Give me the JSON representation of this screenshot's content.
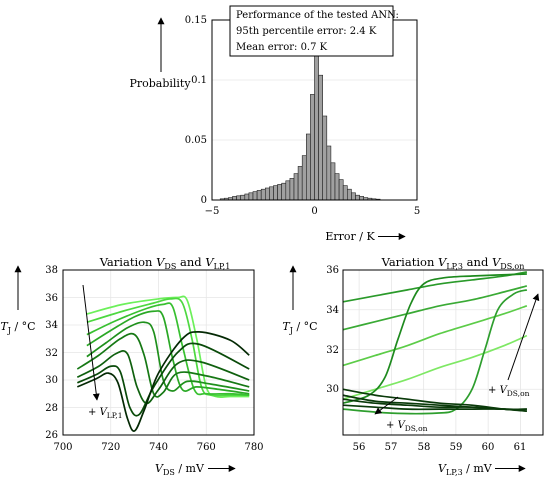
{
  "histogram": {
    "type": "bar",
    "ylabel": "Probability",
    "xlabel": "Error / K",
    "xlim": [
      -5,
      5
    ],
    "ylim": [
      0,
      0.15
    ],
    "xticks": [
      "−5",
      "0",
      "5"
    ],
    "yticks": [
      "0",
      "0.05",
      "0.1",
      "0.15"
    ],
    "grid": true,
    "bar_color": "#a0a0a0",
    "info_box": {
      "line1": "Performance of the tested ANN:",
      "line2": "95th percentile error: 2.4 K",
      "line3": "Mean error: 0.7 K"
    }
  },
  "chart_data": [
    {
      "type": "bar",
      "bin_width": 0.2,
      "bins": [
        {
          "x": -4.5,
          "y": 0.001
        },
        {
          "x": -4.3,
          "y": 0.0015
        },
        {
          "x": -4.1,
          "y": 0.002
        },
        {
          "x": -3.9,
          "y": 0.003
        },
        {
          "x": -3.7,
          "y": 0.0035
        },
        {
          "x": -3.5,
          "y": 0.004
        },
        {
          "x": -3.3,
          "y": 0.005
        },
        {
          "x": -3.1,
          "y": 0.006
        },
        {
          "x": -2.9,
          "y": 0.007
        },
        {
          "x": -2.7,
          "y": 0.008
        },
        {
          "x": -2.5,
          "y": 0.009
        },
        {
          "x": -2.3,
          "y": 0.01
        },
        {
          "x": -2.1,
          "y": 0.011
        },
        {
          "x": -1.9,
          "y": 0.012
        },
        {
          "x": -1.7,
          "y": 0.013
        },
        {
          "x": -1.5,
          "y": 0.014
        },
        {
          "x": -1.3,
          "y": 0.016
        },
        {
          "x": -1.1,
          "y": 0.018
        },
        {
          "x": -0.9,
          "y": 0.022
        },
        {
          "x": -0.7,
          "y": 0.028
        },
        {
          "x": -0.5,
          "y": 0.037
        },
        {
          "x": -0.3,
          "y": 0.055
        },
        {
          "x": -0.1,
          "y": 0.088
        },
        {
          "x": 0.1,
          "y": 0.122
        },
        {
          "x": 0.3,
          "y": 0.104
        },
        {
          "x": 0.5,
          "y": 0.07
        },
        {
          "x": 0.7,
          "y": 0.045
        },
        {
          "x": 0.9,
          "y": 0.031
        },
        {
          "x": 1.1,
          "y": 0.022
        },
        {
          "x": 1.3,
          "y": 0.017
        },
        {
          "x": 1.5,
          "y": 0.012
        },
        {
          "x": 1.7,
          "y": 0.009
        },
        {
          "x": 1.9,
          "y": 0.006
        },
        {
          "x": 2.1,
          "y": 0.004
        },
        {
          "x": 2.3,
          "y": 0.003
        },
        {
          "x": 2.5,
          "y": 0.002
        },
        {
          "x": 2.7,
          "y": 0.0015
        },
        {
          "x": 2.9,
          "y": 0.001
        },
        {
          "x": 3.1,
          "y": 0.0007
        }
      ]
    },
    {
      "type": "line",
      "xlim": [
        700,
        780
      ],
      "ylim": [
        26,
        38
      ],
      "series": [
        {
          "color": "#6cf05a",
          "points": [
            [
              710,
              34.8
            ],
            [
              725,
              35.5
            ],
            [
              740,
              35.9
            ],
            [
              748,
              36.0
            ],
            [
              752,
              35.8
            ],
            [
              756,
              33
            ],
            [
              760,
              29.5
            ],
            [
              764,
              28.8
            ],
            [
              770,
              28.8
            ],
            [
              778,
              28.8
            ]
          ]
        },
        {
          "color": "#4dd840",
          "points": [
            [
              710,
              34.2
            ],
            [
              725,
              35.0
            ],
            [
              738,
              35.6
            ],
            [
              745,
              35.9
            ],
            [
              750,
              35.6
            ],
            [
              754,
              33
            ],
            [
              758,
              29.5
            ],
            [
              762,
              28.9
            ],
            [
              770,
              28.9
            ],
            [
              778,
              28.9
            ]
          ]
        },
        {
          "color": "#38c030",
          "points": [
            [
              710,
              33.3
            ],
            [
              722,
              34.3
            ],
            [
              735,
              35.2
            ],
            [
              742,
              35.5
            ],
            [
              746,
              35.3
            ],
            [
              750,
              32.5
            ],
            [
              755,
              29.3
            ],
            [
              760,
              29.0
            ],
            [
              770,
              29.0
            ],
            [
              778,
              28.9
            ]
          ]
        },
        {
          "color": "#2aa825",
          "points": [
            [
              710,
              32.5
            ],
            [
              720,
              33.6
            ],
            [
              730,
              34.6
            ],
            [
              738,
              35.0
            ],
            [
              742,
              34.6
            ],
            [
              746,
              31.5
            ],
            [
              750,
              29.3
            ],
            [
              756,
              29.5
            ],
            [
              766,
              29.3
            ],
            [
              778,
              29.0
            ]
          ]
        },
        {
          "color": "#1f901c",
          "points": [
            [
              710,
              31.7
            ],
            [
              718,
              32.7
            ],
            [
              727,
              33.8
            ],
            [
              734,
              34.2
            ],
            [
              738,
              33.5
            ],
            [
              742,
              30.0
            ],
            [
              746,
              29.2
            ],
            [
              752,
              29.9
            ],
            [
              762,
              29.7
            ],
            [
              778,
              29.2
            ]
          ]
        },
        {
          "color": "#167814",
          "points": [
            [
              706,
              30.8
            ],
            [
              715,
              31.8
            ],
            [
              724,
              33.0
            ],
            [
              730,
              33.3
            ],
            [
              734,
              31.8
            ],
            [
              738,
              29.0
            ],
            [
              742,
              29.1
            ],
            [
              748,
              30.5
            ],
            [
              760,
              30.3
            ],
            [
              778,
              29.5
            ]
          ]
        },
        {
          "color": "#0f600e",
          "points": [
            [
              706,
              30.2
            ],
            [
              715,
              31.0
            ],
            [
              722,
              31.9
            ],
            [
              727,
              31.9
            ],
            [
              731,
              29.5
            ],
            [
              735,
              28.3
            ],
            [
              740,
              29.3
            ],
            [
              748,
              31.2
            ],
            [
              758,
              31.3
            ],
            [
              778,
              30.0
            ]
          ]
        },
        {
          "color": "#094a09",
          "points": [
            [
              706,
              29.8
            ],
            [
              714,
              30.4
            ],
            [
              720,
              31.0
            ],
            [
              724,
              30.6
            ],
            [
              728,
              28.0
            ],
            [
              732,
              27.5
            ],
            [
              738,
              29.5
            ],
            [
              748,
              32.0
            ],
            [
              757,
              32.6
            ],
            [
              778,
              30.8
            ]
          ]
        },
        {
          "color": "#042904",
          "points": [
            [
              706,
              29.5
            ],
            [
              714,
              30.1
            ],
            [
              719,
              30.5
            ],
            [
              723,
              29.8
            ],
            [
              727,
              27.2
            ],
            [
              730,
              26.3
            ],
            [
              734,
              27.8
            ],
            [
              740,
              30.5
            ],
            [
              750,
              33.0
            ],
            [
              757,
              33.5
            ],
            [
              770,
              32.9
            ],
            [
              778,
              31.8
            ]
          ]
        }
      ]
    },
    {
      "type": "line",
      "xlim": [
        55.5,
        61.7
      ],
      "ylim": [
        27.7,
        36
      ],
      "series": [
        {
          "color": "#2a9a2a",
          "points": [
            [
              55.5,
              34.4
            ],
            [
              56.5,
              34.7
            ],
            [
              57.5,
              35.0
            ],
            [
              58.5,
              35.3
            ],
            [
              59.5,
              35.5
            ],
            [
              60.5,
              35.7
            ],
            [
              61.2,
              35.9
            ]
          ]
        },
        {
          "color": "#3aaa35",
          "points": [
            [
              55.5,
              33.0
            ],
            [
              56.5,
              33.4
            ],
            [
              57.5,
              33.8
            ],
            [
              58.5,
              34.2
            ],
            [
              59.5,
              34.5
            ],
            [
              60.5,
              34.9
            ],
            [
              61.2,
              35.2
            ]
          ]
        },
        {
          "color": "#5ccc48",
          "points": [
            [
              55.5,
              31.2
            ],
            [
              56.5,
              31.7
            ],
            [
              57.5,
              32.2
            ],
            [
              58.5,
              32.8
            ],
            [
              59.5,
              33.3
            ],
            [
              60.5,
              33.8
            ],
            [
              61.2,
              34.2
            ]
          ]
        },
        {
          "color": "#7ee864",
          "points": [
            [
              55.5,
              29.5
            ],
            [
              56.5,
              30.0
            ],
            [
              57.5,
              30.5
            ],
            [
              58.5,
              31.1
            ],
            [
              59.5,
              31.6
            ],
            [
              60.5,
              32.2
            ],
            [
              61.2,
              32.7
            ]
          ]
        },
        {
          "color": "#1e8a1e",
          "points": [
            [
              55.5,
              29.3
            ],
            [
              56.3,
              29.7
            ],
            [
              56.8,
              30.6
            ],
            [
              57.2,
              32.5
            ],
            [
              57.6,
              34.3
            ],
            [
              58.0,
              35.3
            ],
            [
              58.6,
              35.6
            ],
            [
              59.5,
              35.7
            ],
            [
              61.2,
              35.8
            ]
          ]
        },
        {
          "color": "#2e9e2e",
          "points": [
            [
              55.5,
              29.0
            ],
            [
              57.0,
              28.8
            ],
            [
              58.4,
              28.8
            ],
            [
              59.0,
              29.0
            ],
            [
              59.5,
              30.0
            ],
            [
              59.9,
              32.0
            ],
            [
              60.3,
              34.0
            ],
            [
              60.8,
              34.8
            ],
            [
              61.2,
              35.0
            ]
          ]
        },
        {
          "color": "#0a3a0a",
          "points": [
            [
              55.5,
              30.0
            ],
            [
              56.5,
              29.7
            ],
            [
              57.5,
              29.5
            ],
            [
              58.5,
              29.3
            ],
            [
              59.5,
              29.2
            ],
            [
              60.5,
              29.0
            ],
            [
              61.2,
              28.9
            ]
          ]
        },
        {
          "color": "#0a3a0a",
          "points": [
            [
              55.5,
              29.7
            ],
            [
              56.5,
              29.4
            ],
            [
              57.5,
              29.3
            ],
            [
              58.5,
              29.2
            ],
            [
              59.5,
              29.1
            ],
            [
              60.5,
              29.0
            ],
            [
              61.2,
              29.0
            ]
          ]
        },
        {
          "color": "#0a3a0a",
          "points": [
            [
              55.5,
              29.5
            ],
            [
              56.5,
              29.3
            ],
            [
              57.5,
              29.2
            ],
            [
              58.5,
              29.1
            ],
            [
              59.5,
              29.1
            ],
            [
              60.5,
              29.0
            ],
            [
              61.2,
              29.0
            ]
          ]
        },
        {
          "color": "#0a3a0a",
          "points": [
            [
              55.5,
              29.2
            ],
            [
              56.5,
              29.1
            ],
            [
              57.5,
              29.0
            ],
            [
              58.5,
              29.0
            ],
            [
              59.5,
              29.0
            ],
            [
              60.5,
              29.0
            ],
            [
              61.2,
              28.9
            ]
          ]
        }
      ]
    }
  ],
  "panel_left": {
    "title_prefix": "Variation ",
    "title_v": "V",
    "title_sub1": "DS",
    "title_and": " and ",
    "title_v2": "V",
    "title_sub2": "LP,1",
    "ylabel_t": "T",
    "ylabel_sub": "J",
    "ylabel_unit": " / °C",
    "xlabel_v": "V",
    "xlabel_sub": "DS",
    "xlabel_unit": " / mV",
    "xticks": [
      "700",
      "720",
      "740",
      "760",
      "780"
    ],
    "yticks": [
      "26",
      "28",
      "30",
      "32",
      "34",
      "36",
      "38"
    ],
    "annotation_plus": "+ ",
    "annotation_v": "V",
    "annotation_sub": "LP,1"
  },
  "panel_right": {
    "title_prefix": "Variation ",
    "title_v": "V",
    "title_sub1": "LP,3",
    "title_and": " and ",
    "title_v2": "V",
    "title_sub2": "DS,on",
    "ylabel_t": "T",
    "ylabel_sub": "J",
    "ylabel_unit": " / °C",
    "xlabel_v": "V",
    "xlabel_sub": "LP,3",
    "xlabel_unit": " / mV",
    "xticks": [
      "56",
      "57",
      "58",
      "59",
      "60",
      "61"
    ],
    "yticks": [
      "30",
      "32",
      "34",
      "36"
    ],
    "annotation1_plus": "+ ",
    "annotation1_v": "V",
    "annotation1_sub": "DS,on",
    "annotation2_plus": "+ ",
    "annotation2_v": "V",
    "annotation2_sub": "DS,on"
  }
}
